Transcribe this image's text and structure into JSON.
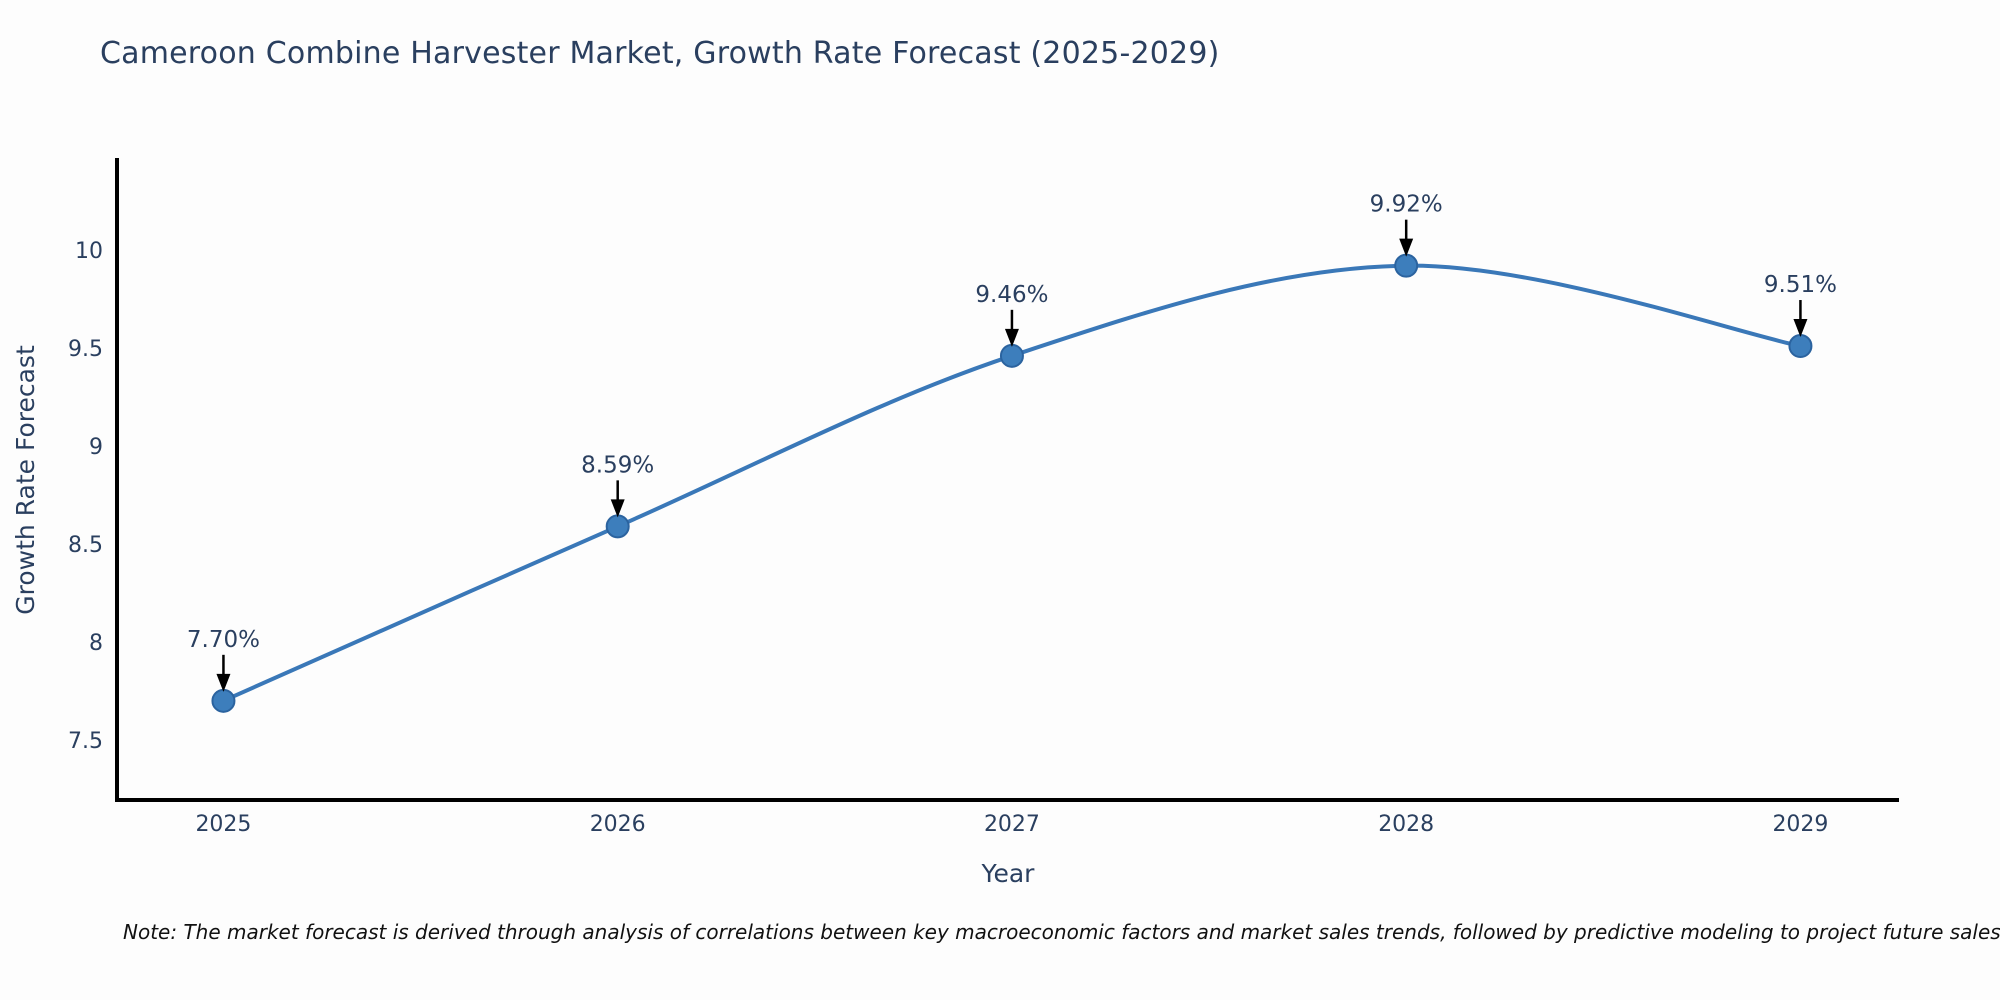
{
  "title": "Cameroon Combine Harvester Market, Growth Rate Forecast (2025-2029)",
  "note": "Note: The market forecast is derived through analysis of correlations between key macroeconomic factors and market sales trends, followed by predictive modeling to project future sales",
  "chart_data": {
    "type": "line",
    "line_shape": "spline",
    "title": "Cameroon Combine Harvester Market, Growth Rate Forecast (2025-2029)",
    "xlabel": "Year",
    "ylabel": "Growth Rate Forecast",
    "x": [
      2025,
      2026,
      2027,
      2028,
      2029
    ],
    "series": [
      {
        "name": "Growth Rate Forecast",
        "values": [
          7.7,
          8.59,
          9.46,
          9.92,
          9.51
        ]
      }
    ],
    "point_labels": [
      "7.70%",
      "8.59%",
      "9.46%",
      "9.92%",
      "9.51%"
    ],
    "xtick_labels": [
      "2025",
      "2026",
      "2027",
      "2028",
      "2029"
    ],
    "yticks": [
      7.5,
      8,
      8.5,
      9,
      9.5,
      10
    ],
    "ytick_labels": [
      "7.5",
      "8",
      "8.5",
      "9",
      "9.5",
      "10"
    ],
    "xlim": [
      2024.73,
      2029.25
    ],
    "ylim": [
      7.194,
      10.459
    ],
    "grid": false,
    "legend_position": "none",
    "colors": {
      "line": "#3a78b8",
      "marker_fill": "#3d7ebc",
      "marker_stroke": "#2b639f",
      "axis": "#000000",
      "tick_text": "#2a3f5f",
      "annotation_text": "#2a3f5f",
      "annotation_arrow": "#000000",
      "background": "#fdfdfd"
    }
  }
}
